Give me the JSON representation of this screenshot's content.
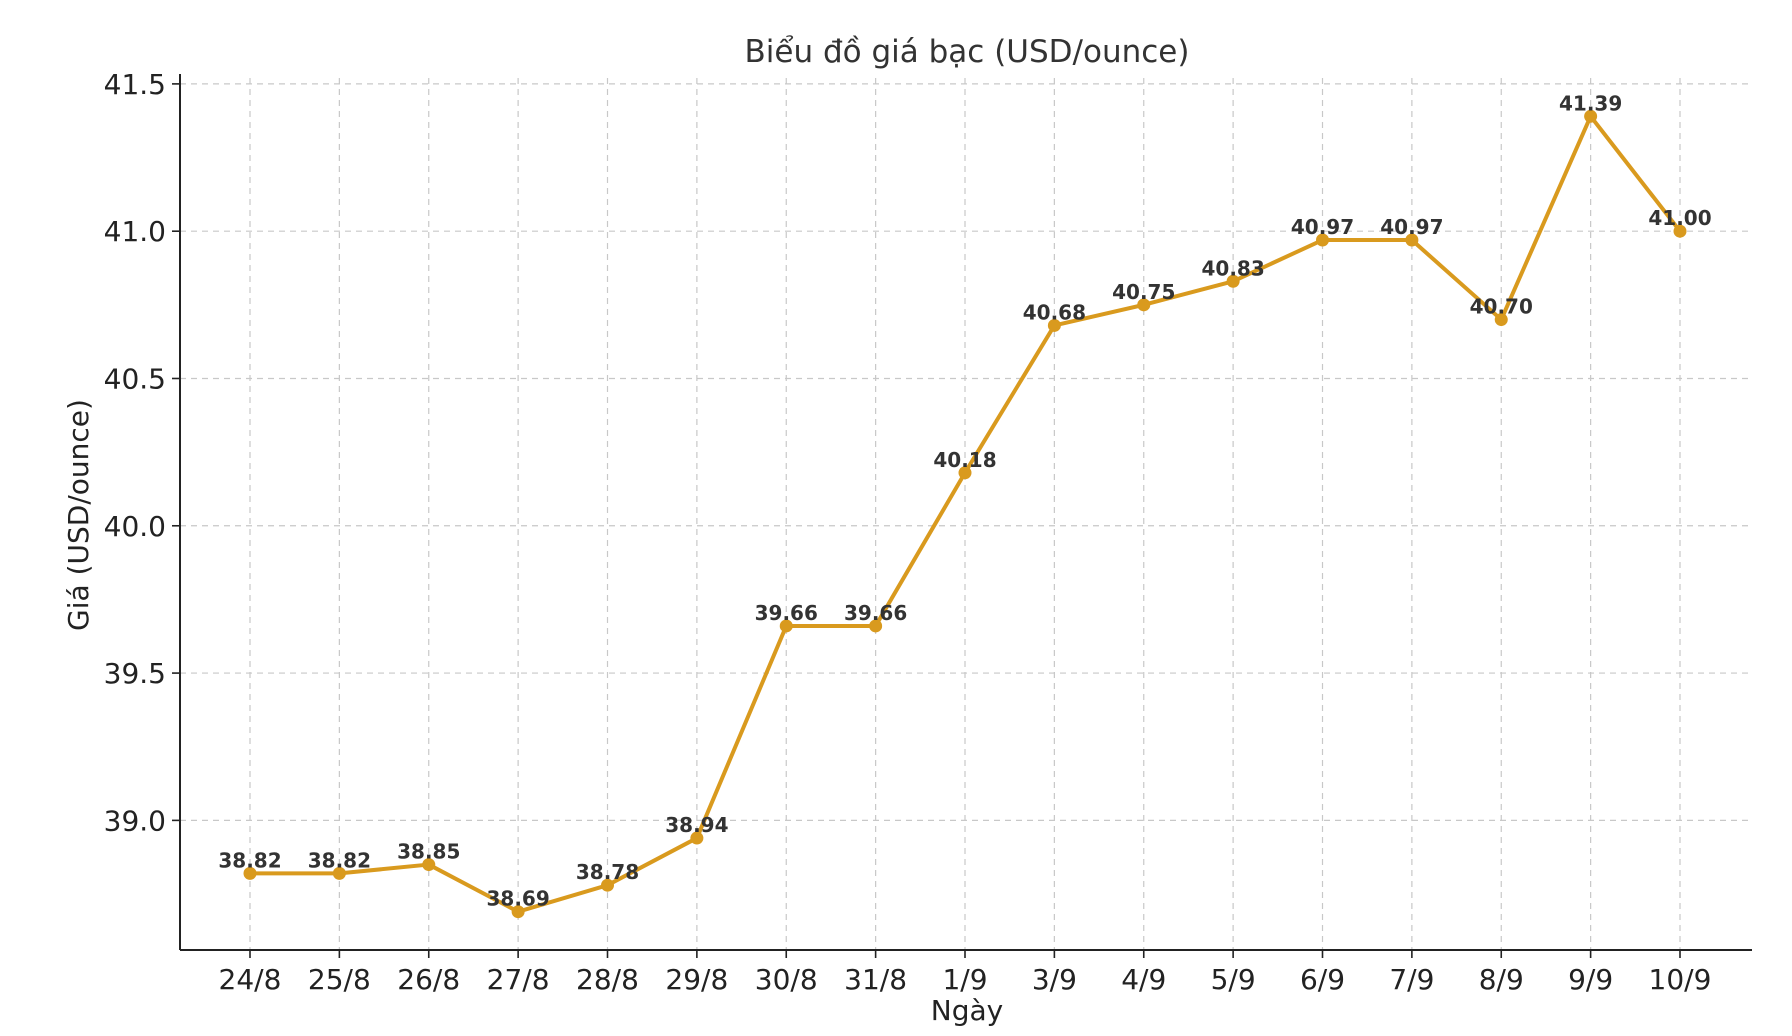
{
  "chart_data": {
    "type": "line",
    "title": "Biểu đồ giá bạc (USD/ounce)",
    "xlabel": "Ngày",
    "ylabel": "Giá (USD/ounce)",
    "categories": [
      "24/8",
      "25/8",
      "26/8",
      "27/8",
      "28/8",
      "29/8",
      "30/8",
      "31/8",
      "1/9",
      "3/9",
      "4/9",
      "5/9",
      "6/9",
      "7/9",
      "8/9",
      "9/9",
      "10/9"
    ],
    "series": [
      {
        "values": [
          38.82,
          38.82,
          38.85,
          38.69,
          38.78,
          38.94,
          39.66,
          39.66,
          40.18,
          40.68,
          40.75,
          40.83,
          40.97,
          40.97,
          40.7,
          41.39,
          41.0
        ],
        "color": "#d99a1e"
      }
    ],
    "data_labels": [
      "38.82",
      "38.82",
      "38.85",
      "38.69",
      "38.78",
      "38.94",
      "39.66",
      "39.66",
      "40.18",
      "40.68",
      "40.75",
      "40.83",
      "40.97",
      "40.97",
      "40.70",
      "41.39",
      "41.00"
    ],
    "yticks": [
      39.0,
      39.5,
      40.0,
      40.5,
      41.0,
      41.5
    ],
    "ytick_labels": [
      "39.0",
      "39.5",
      "40.0",
      "40.5",
      "41.0",
      "41.5"
    ],
    "ylim": [
      38.56,
      41.52
    ],
    "grid": true,
    "legend": false
  }
}
